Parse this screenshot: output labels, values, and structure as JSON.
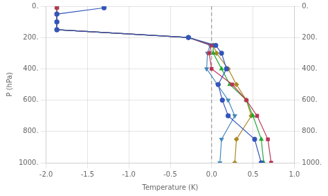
{
  "chart_data": {
    "type": "line",
    "xlabel": "Temperature (K)",
    "ylabel": "P (hPa)",
    "xlim": [
      -2.0,
      1.0
    ],
    "ylim": [
      1000,
      0
    ],
    "y2lim": [
      1000,
      0
    ],
    "xticks": [
      {
        "value": -2.0,
        "label": "-2.0"
      },
      -1.5,
      {
        "value": -1.0,
        "label": "-1.0"
      },
      -0.5,
      {
        "value": 0.0,
        "label": "0.0"
      },
      0.5,
      {
        "value": 1.0,
        "label": "1.0"
      }
    ],
    "yticks": [
      {
        "value": 0,
        "label": "0."
      },
      {
        "value": 200,
        "label": "200."
      },
      {
        "value": 400,
        "label": "400."
      },
      {
        "value": 600,
        "label": "600."
      },
      {
        "value": 800,
        "label": "800."
      },
      {
        "value": 1000,
        "label": "1000."
      }
    ],
    "y2ticks": [
      {
        "value": 0,
        "label": "0."
      },
      {
        "value": 200,
        "label": "200."
      },
      {
        "value": 400,
        "label": "400."
      },
      {
        "value": 600,
        "label": "600."
      },
      {
        "value": 800,
        "label": "800."
      },
      {
        "value": 1000,
        "label": "1000."
      }
    ],
    "grid": true,
    "series": [
      {
        "color": "#3355bb",
        "marker": "circle",
        "x": [
          -1.3,
          -1.87,
          -1.87,
          -1.87,
          -0.28,
          0.05,
          0.12,
          0.18,
          0.08,
          0.13,
          0.2,
          0.52,
          0.6
        ],
        "values": [
          10,
          50,
          100,
          150,
          200,
          250,
          300,
          400,
          500,
          600,
          700,
          850,
          1000
        ]
      },
      {
        "color": "#bb3355",
        "marker": "square",
        "x": [
          -1.87,
          -1.87,
          -1.87,
          -1.87,
          -0.28,
          0.0,
          -0.03,
          0.0,
          0.25,
          0.42,
          0.55,
          0.68,
          0.72
        ],
        "values": [
          10,
          50,
          100,
          150,
          200,
          250,
          300,
          400,
          500,
          600,
          700,
          850,
          1000
        ]
      },
      {
        "color": "#22aa33",
        "marker": "triangle",
        "x": [
          -1.87,
          -1.87,
          -1.87,
          -1.87,
          -0.28,
          0.02,
          0.02,
          0.12,
          0.22,
          0.42,
          0.5,
          0.6,
          0.63
        ],
        "values": [
          10,
          50,
          100,
          150,
          200,
          250,
          300,
          400,
          500,
          600,
          700,
          850,
          1000
        ]
      },
      {
        "color": "#aa8822",
        "marker": "diamond",
        "x": [
          -1.87,
          -1.87,
          -1.87,
          -1.87,
          -0.28,
          0.02,
          0.06,
          0.2,
          0.3,
          0.42,
          0.48,
          0.3,
          0.28
        ],
        "values": [
          10,
          50,
          100,
          150,
          200,
          250,
          300,
          400,
          500,
          600,
          700,
          850,
          1000
        ]
      },
      {
        "color": "#4488bb",
        "marker": "triangle_down",
        "x": [
          -1.87,
          -1.87,
          -1.87,
          -1.87,
          -0.28,
          -0.02,
          -0.05,
          -0.06,
          0.07,
          0.2,
          0.28,
          0.12,
          0.1
        ],
        "values": [
          10,
          50,
          100,
          150,
          200,
          250,
          300,
          400,
          500,
          600,
          700,
          850,
          1000
        ]
      }
    ],
    "reference_lines": [
      {
        "x": 0.0,
        "line_style": "dashed",
        "color": "#888888"
      }
    ]
  }
}
